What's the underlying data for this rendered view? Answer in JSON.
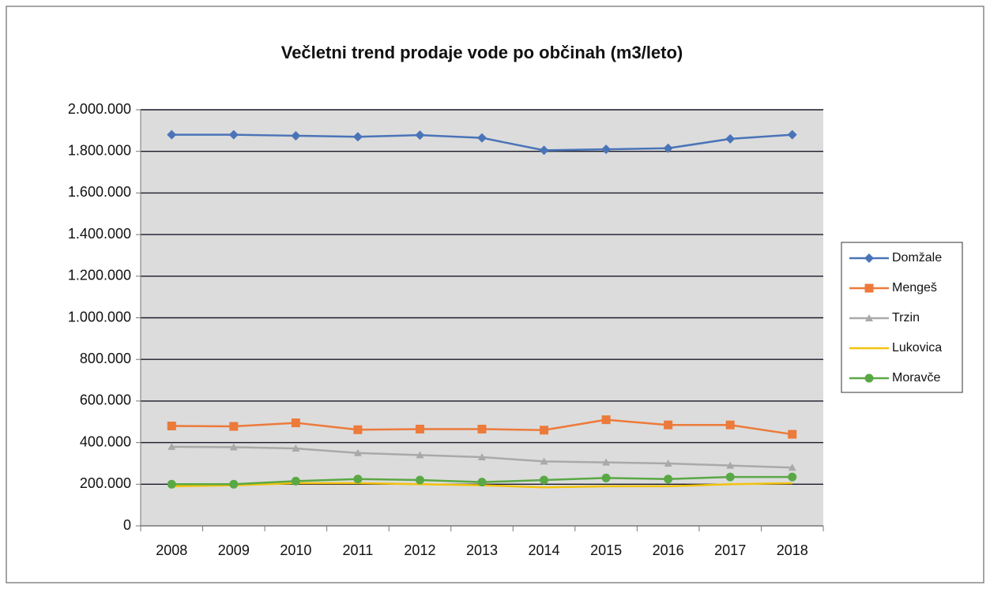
{
  "chart_data": {
    "type": "line",
    "title": "Večletni trend prodaje vode  po občinah (m3/leto)",
    "categories": [
      "2008",
      "2009",
      "2010",
      "2011",
      "2012",
      "2013",
      "2014",
      "2015",
      "2016",
      "2017",
      "2018"
    ],
    "series": [
      {
        "name": "Domžale",
        "color": "#4a74b8",
        "marker": "diamond",
        "values": [
          1880000,
          1880000,
          1875000,
          1870000,
          1878000,
          1865000,
          1805000,
          1810000,
          1815000,
          1860000,
          1880000
        ]
      },
      {
        "name": "Mengeš",
        "color": "#ec7a3a",
        "marker": "square",
        "values": [
          480000,
          478000,
          495000,
          462000,
          465000,
          465000,
          460000,
          510000,
          485000,
          485000,
          440000
        ]
      },
      {
        "name": "Trzin",
        "color": "#a9a9a9",
        "marker": "triangle",
        "values": [
          380000,
          378000,
          372000,
          350000,
          340000,
          330000,
          310000,
          305000,
          300000,
          290000,
          280000
        ]
      },
      {
        "name": "Lukovica",
        "color": "#f2c20c",
        "marker": "none",
        "values": [
          190000,
          195000,
          205000,
          205000,
          200000,
          195000,
          185000,
          190000,
          190000,
          200000,
          205000
        ]
      },
      {
        "name": "Moravče",
        "color": "#5aa845",
        "marker": "circle",
        "values": [
          200000,
          200000,
          215000,
          225000,
          220000,
          210000,
          220000,
          230000,
          225000,
          235000,
          235000
        ]
      }
    ],
    "ylim": [
      0,
      2000000
    ],
    "yticks": [
      0,
      {
        "value": 200000,
        "label": "200.000"
      },
      {
        "value": 400000,
        "label": "400.000"
      },
      {
        "value": 600000,
        "label": "600.000"
      },
      {
        "value": 800000,
        "label": "800.000"
      },
      {
        "value": 1000000,
        "label": "1.000.000"
      },
      {
        "value": 1200000,
        "label": "1.200.000"
      },
      {
        "value": 1400000,
        "label": "1.400.000"
      },
      {
        "value": 1600000,
        "label": "1.600.000"
      },
      {
        "value": 1800000,
        "label": "1.800.000"
      },
      {
        "value": 2000000,
        "label": "2.000.000"
      }
    ],
    "grid": true,
    "legend": "right"
  }
}
